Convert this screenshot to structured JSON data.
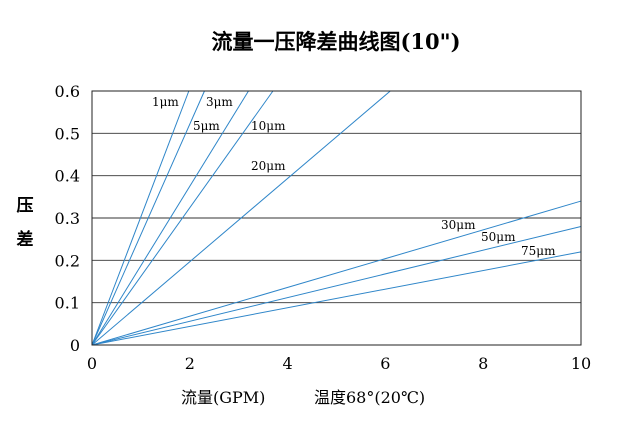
{
  "chart_data": {
    "type": "line",
    "title": "流量一压降差曲线图(10\")",
    "xlabel": "流量(GPM)",
    "xlabel_note": "温度68°(20℃)",
    "ylabel": "压差",
    "xlim": [
      0,
      10
    ],
    "ylim": [
      0,
      0.6
    ],
    "x_ticks": [
      "0",
      "2",
      "4",
      "6",
      "8",
      "10"
    ],
    "y_ticks": [
      "0",
      "0.1",
      "0.2",
      "0.3",
      "0.4",
      "0.5",
      "0.6"
    ],
    "grid": "horizontal",
    "line_color": "#2f86c9",
    "series": [
      {
        "name": "1μm",
        "x": [
          0,
          1.98
        ],
        "y": [
          0,
          0.6
        ]
      },
      {
        "name": "3μm",
        "x": [
          0,
          2.3
        ],
        "y": [
          0,
          0.6
        ]
      },
      {
        "name": "5μm",
        "x": [
          0,
          3.2
        ],
        "y": [
          0,
          0.6
        ]
      },
      {
        "name": "10μm",
        "x": [
          0,
          3.7
        ],
        "y": [
          0,
          0.6
        ]
      },
      {
        "name": "20μm",
        "x": [
          0,
          6.1
        ],
        "y": [
          0,
          0.6
        ]
      },
      {
        "name": "30μm",
        "x": [
          0,
          10
        ],
        "y": [
          0,
          0.34
        ]
      },
      {
        "name": "50μm",
        "x": [
          0,
          10
        ],
        "y": [
          0,
          0.28
        ]
      },
      {
        "name": "75μm",
        "x": [
          0,
          10
        ],
        "y": [
          0,
          0.22
        ]
      }
    ]
  }
}
